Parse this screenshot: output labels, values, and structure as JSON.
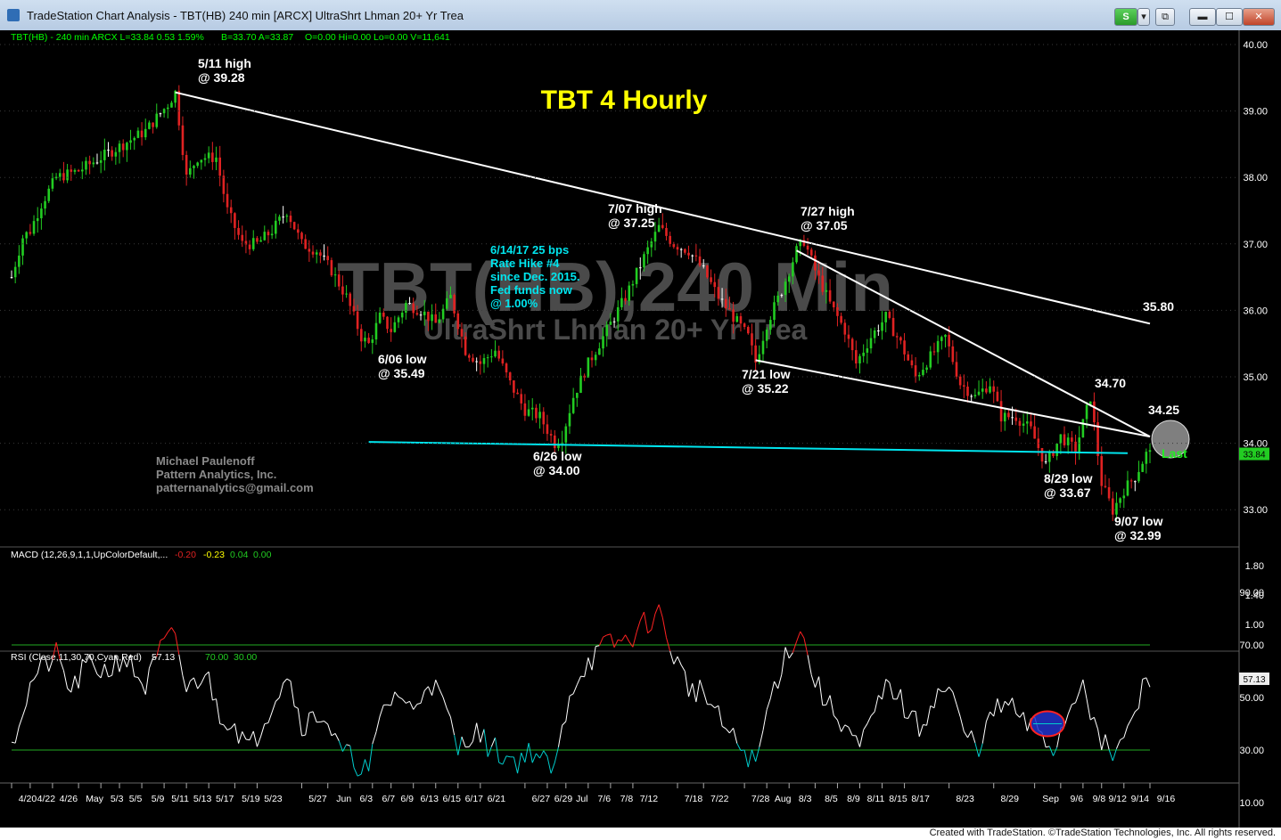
{
  "window": {
    "title": "TradeStation Chart Analysis - TBT(HB) 240 min [ARCX] UltraShrt Lhman 20+ Yr Trea",
    "buttons": {
      "s": "S",
      "menu": "▾",
      "restore": "⧉",
      "minimize": "▬",
      "maximize": "☐",
      "close": "✕"
    }
  },
  "status": {
    "credit": "Created with TradeStation. ©TradeStation Technologies, Inc. All rights reserved."
  },
  "colors": {
    "up": "#22cc22",
    "down": "#e02222",
    "flat": "#ffffff",
    "trend": "#ffffff",
    "support": "#00e5ee",
    "annotation": "#ffffff",
    "title": "#ffff00",
    "note": "#00e5ee",
    "watermark": "#4a4a4a",
    "grid_dot": "#3a3a3a"
  },
  "chart_data": [
    {
      "type": "candlestick",
      "title": "TBT 4 Hourly",
      "watermark": [
        "TBT(HB),240 Min",
        "UltraShrt Lhman 20+ Yr Trea"
      ],
      "header": [
        {
          "text": "TBT(HB) - 240 min  ARCX  L=33.84  0.53  1.59%",
          "color": "#00ff00"
        },
        {
          "text": "B=33.70  A=33.87",
          "color": "#00ff00"
        },
        {
          "text": "O=0.00  Hi=0.00  Lo=0.00  V=11,641",
          "color": "#00ff00"
        }
      ],
      "y_ticks": [
        "40.00",
        "39.00",
        "38.00",
        "37.00",
        "36.00",
        "35.00",
        "34.00",
        "33.00"
      ],
      "last_price": "33.84",
      "x_ticks": [
        "4/20",
        "4/22",
        "4/26",
        "May",
        "5/3",
        "5/5",
        "5/9",
        "5/11",
        "5/13",
        "5/17",
        "5/19",
        "5/23",
        "5/27",
        "Jun",
        "6/3",
        "6/7",
        "6/9",
        "6/13",
        "6/15",
        "6/17",
        "6/21",
        "6/27",
        "6/29",
        "Jul",
        "7/6",
        "7/8",
        "7/12",
        "7/18",
        "7/22",
        "7/28",
        "Aug",
        "8/3",
        "8/5",
        "8/9",
        "8/11",
        "8/15",
        "8/17",
        "8/23",
        "8/29",
        "Sep",
        "9/6",
        "9/8",
        "9/12",
        "9/14",
        "9/16"
      ],
      "x_tick_bar": [
        0,
        5,
        11,
        18,
        24,
        29,
        35,
        41,
        47,
        53,
        60,
        66,
        78,
        85,
        91,
        97,
        102,
        108,
        114,
        120,
        126,
        138,
        144,
        149,
        155,
        161,
        167,
        179,
        186,
        197,
        203,
        209,
        216,
        222,
        228,
        234,
        240,
        252,
        264,
        275,
        282,
        288,
        293,
        299,
        306
      ],
      "price_keys": [
        [
          0,
          36.5
        ],
        [
          3,
          37.1
        ],
        [
          5,
          37.2
        ],
        [
          8,
          37.6
        ],
        [
          12,
          38.0
        ],
        [
          18,
          38.1
        ],
        [
          24,
          38.3
        ],
        [
          30,
          38.5
        ],
        [
          36,
          38.7
        ],
        [
          42,
          39.1
        ],
        [
          44,
          39.28
        ],
        [
          47,
          38.0
        ],
        [
          50,
          38.3
        ],
        [
          55,
          38.3
        ],
        [
          58,
          37.5
        ],
        [
          62,
          37.0
        ],
        [
          66,
          37.0
        ],
        [
          70,
          37.2
        ],
        [
          74,
          37.5
        ],
        [
          78,
          37.0
        ],
        [
          82,
          36.9
        ],
        [
          86,
          36.6
        ],
        [
          90,
          36.2
        ],
        [
          94,
          35.6
        ],
        [
          96,
          35.49
        ],
        [
          99,
          35.9
        ],
        [
          102,
          35.7
        ],
        [
          106,
          36.1
        ],
        [
          110,
          36.0
        ],
        [
          114,
          35.8
        ],
        [
          118,
          36.2
        ],
        [
          122,
          35.4
        ],
        [
          126,
          35.2
        ],
        [
          130,
          35.4
        ],
        [
          134,
          34.9
        ],
        [
          138,
          34.5
        ],
        [
          142,
          34.4
        ],
        [
          146,
          34.0
        ],
        [
          148,
          34.1
        ],
        [
          151,
          34.7
        ],
        [
          155,
          35.2
        ],
        [
          160,
          35.7
        ],
        [
          165,
          36.2
        ],
        [
          170,
          36.8
        ],
        [
          174,
          37.25
        ],
        [
          178,
          37.0
        ],
        [
          182,
          36.9
        ],
        [
          186,
          36.6
        ],
        [
          190,
          36.2
        ],
        [
          194,
          35.9
        ],
        [
          198,
          35.6
        ],
        [
          200,
          35.22
        ],
        [
          203,
          35.8
        ],
        [
          207,
          36.3
        ],
        [
          211,
          36.9
        ],
        [
          213,
          37.05
        ],
        [
          216,
          36.6
        ],
        [
          220,
          36.1
        ],
        [
          224,
          35.7
        ],
        [
          227,
          35.2
        ],
        [
          231,
          35.6
        ],
        [
          235,
          35.9
        ],
        [
          239,
          35.5
        ],
        [
          243,
          35.0
        ],
        [
          247,
          35.3
        ],
        [
          251,
          35.6
        ],
        [
          255,
          34.9
        ],
        [
          259,
          34.7
        ],
        [
          263,
          34.9
        ],
        [
          266,
          34.4
        ],
        [
          270,
          34.4
        ],
        [
          274,
          34.2
        ],
        [
          278,
          33.67
        ],
        [
          282,
          34.1
        ],
        [
          286,
          33.9
        ],
        [
          290,
          34.7
        ],
        [
          293,
          33.4
        ],
        [
          296,
          32.99
        ],
        [
          299,
          33.3
        ],
        [
          302,
          33.5
        ],
        [
          305,
          33.84
        ]
      ],
      "annotations": [
        {
          "lines": [
            "5/11 high",
            "@ 39.28"
          ]
        },
        {
          "lines": [
            "6/06 low",
            "@ 35.49"
          ]
        },
        {
          "lines": [
            "6/14/17 25 bps",
            "Rate Hike #4",
            "since Dec. 2015.",
            "Fed funds now",
            "@ 1.00%"
          ]
        },
        {
          "lines": [
            "6/26 low",
            "@ 34.00"
          ]
        },
        {
          "lines": [
            "7/07 high",
            "@ 37.25"
          ]
        },
        {
          "lines": [
            "7/27 high",
            "@ 37.05"
          ]
        },
        {
          "lines": [
            "7/21 low",
            "@ 35.22"
          ]
        },
        {
          "lines": [
            "35.80"
          ]
        },
        {
          "lines": [
            "34.70"
          ]
        },
        {
          "lines": [
            "34.25"
          ]
        },
        {
          "lines": [
            "Last"
          ]
        },
        {
          "lines": [
            "8/29 low",
            "@ 33.67"
          ]
        },
        {
          "lines": [
            "9/07 low",
            "@ 32.99"
          ]
        },
        {
          "lines": [
            "Michael Paulenoff",
            "Pattern Analytics, Inc.",
            "patternanalytics@gmail.com"
          ]
        }
      ],
      "lines": [
        {
          "name": "upper-trendline",
          "from": [
            44,
            39.28
          ],
          "to": [
            306,
            35.8
          ]
        },
        {
          "name": "falling-trendline",
          "from": [
            211,
            36.9
          ],
          "to": [
            306,
            34.1
          ]
        },
        {
          "name": "lower-trendline",
          "from": [
            200,
            35.25
          ],
          "to": [
            306,
            34.1
          ]
        },
        {
          "name": "support-line",
          "from": [
            96,
            34.02
          ],
          "to": [
            300,
            33.85
          ]
        }
      ]
    },
    {
      "type": "line",
      "label": "MACD (12,26,9,1,1,UpColorDefault,...",
      "values_text": [
        "-0.20",
        "-0.23",
        "0.04",
        "0.00"
      ],
      "value_colors": [
        "#e02222",
        "#ffff00",
        "#22cc22",
        "#22cc22"
      ],
      "y_ticks": [
        "1.80",
        "1.40",
        "1.00"
      ]
    },
    {
      "type": "line",
      "label": "RSI (Close,11,30,70,Cyan,Red)",
      "values_text": [
        "57.13",
        "70.00",
        "30.00"
      ],
      "value_colors": [
        "#ffffff",
        "#22cc22",
        "#22cc22"
      ],
      "y_ticks": [
        "90.00",
        "70.00",
        "50.00",
        "30.00",
        "10.00"
      ],
      "last_value": "57.13",
      "levels": [
        70,
        30
      ],
      "rsi_keys": [
        [
          0,
          33
        ],
        [
          6,
          58
        ],
        [
          12,
          66
        ],
        [
          16,
          52
        ],
        [
          20,
          62
        ],
        [
          26,
          60
        ],
        [
          30,
          66
        ],
        [
          36,
          54
        ],
        [
          40,
          68
        ],
        [
          44,
          74
        ],
        [
          47,
          52
        ],
        [
          52,
          60
        ],
        [
          56,
          44
        ],
        [
          60,
          40
        ],
        [
          64,
          30
        ],
        [
          70,
          48
        ],
        [
          74,
          60
        ],
        [
          78,
          40
        ],
        [
          84,
          44
        ],
        [
          88,
          30
        ],
        [
          92,
          26
        ],
        [
          96,
          22
        ],
        [
          100,
          46
        ],
        [
          104,
          52
        ],
        [
          108,
          44
        ],
        [
          112,
          58
        ],
        [
          116,
          48
        ],
        [
          120,
          30
        ],
        [
          124,
          38
        ],
        [
          128,
          32
        ],
        [
          132,
          28
        ],
        [
          136,
          26
        ],
        [
          140,
          30
        ],
        [
          144,
          24
        ],
        [
          146,
          22
        ],
        [
          150,
          52
        ],
        [
          154,
          62
        ],
        [
          160,
          70
        ],
        [
          166,
          72
        ],
        [
          170,
          78
        ],
        [
          174,
          82
        ],
        [
          178,
          66
        ],
        [
          182,
          54
        ],
        [
          186,
          52
        ],
        [
          190,
          42
        ],
        [
          194,
          34
        ],
        [
          198,
          28
        ],
        [
          200,
          24
        ],
        [
          204,
          50
        ],
        [
          208,
          66
        ],
        [
          212,
          76
        ],
        [
          216,
          56
        ],
        [
          220,
          46
        ],
        [
          224,
          40
        ],
        [
          228,
          30
        ],
        [
          232,
          44
        ],
        [
          236,
          56
        ],
        [
          240,
          46
        ],
        [
          244,
          38
        ],
        [
          248,
          50
        ],
        [
          252,
          54
        ],
        [
          256,
          36
        ],
        [
          260,
          32
        ],
        [
          264,
          44
        ],
        [
          268,
          48
        ],
        [
          272,
          40
        ],
        [
          276,
          38
        ],
        [
          280,
          30
        ],
        [
          284,
          44
        ],
        [
          288,
          58
        ],
        [
          292,
          34
        ],
        [
          296,
          28
        ],
        [
          300,
          36
        ],
        [
          305,
          57
        ]
      ],
      "ellipse_at": [
        277,
        40
      ]
    }
  ]
}
